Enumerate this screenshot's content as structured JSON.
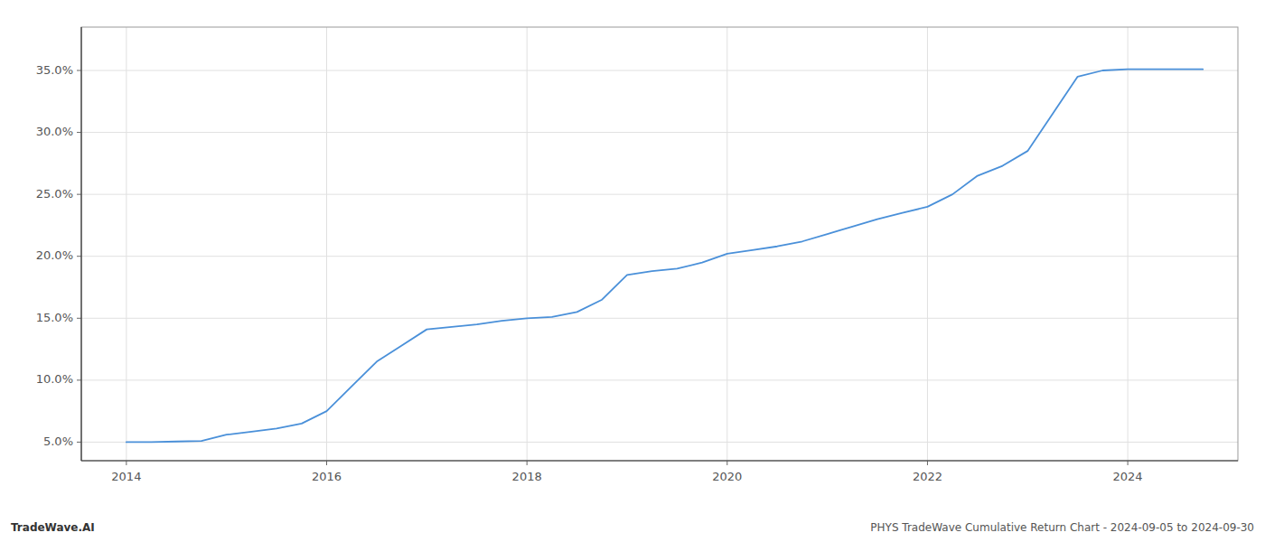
{
  "chart_data": {
    "type": "line",
    "x": [
      2014.0,
      2014.25,
      2014.5,
      2014.75,
      2015.0,
      2015.25,
      2015.5,
      2015.75,
      2016.0,
      2016.25,
      2016.5,
      2016.75,
      2017.0,
      2017.25,
      2017.5,
      2017.75,
      2018.0,
      2018.25,
      2018.5,
      2018.75,
      2019.0,
      2019.25,
      2019.5,
      2019.75,
      2020.0,
      2020.25,
      2020.5,
      2020.75,
      2021.0,
      2021.25,
      2021.5,
      2021.75,
      2022.0,
      2022.25,
      2022.5,
      2022.75,
      2023.0,
      2023.25,
      2023.5,
      2023.75,
      2024.0,
      2024.5,
      2024.75
    ],
    "values": [
      5.0,
      5.0,
      5.05,
      5.1,
      5.6,
      5.85,
      6.1,
      6.5,
      7.5,
      9.5,
      11.5,
      12.8,
      14.1,
      14.3,
      14.5,
      14.8,
      15.0,
      15.1,
      15.5,
      16.5,
      18.5,
      18.8,
      19.0,
      19.5,
      20.2,
      20.5,
      20.8,
      21.2,
      21.8,
      22.4,
      23.0,
      23.5,
      24.0,
      25.0,
      26.5,
      27.3,
      28.5,
      31.5,
      34.5,
      35.0,
      35.1,
      35.1,
      35.1
    ],
    "color": "#4a90d9",
    "xlim": [
      2013.55,
      2025.1
    ],
    "ylim": [
      3.5,
      38.5
    ],
    "xticks": [
      2014,
      2016,
      2018,
      2020,
      2022,
      2024
    ],
    "yticks": [
      {
        "value": 5.0,
        "label": "5.0%"
      },
      {
        "value": 10.0,
        "label": "10.0%"
      },
      {
        "value": 15.0,
        "label": "15.0%"
      },
      {
        "value": 20.0,
        "label": "20.0%"
      },
      {
        "value": 25.0,
        "label": "25.0%"
      },
      {
        "value": 30.0,
        "label": "30.0%"
      },
      {
        "value": 35.0,
        "label": "35.0%"
      }
    ],
    "grid": true,
    "annotations": [
      "TradeWave.AI",
      "PHYS TradeWave Cumulative Return Chart - 2024-09-05 to 2024-09-30"
    ]
  }
}
